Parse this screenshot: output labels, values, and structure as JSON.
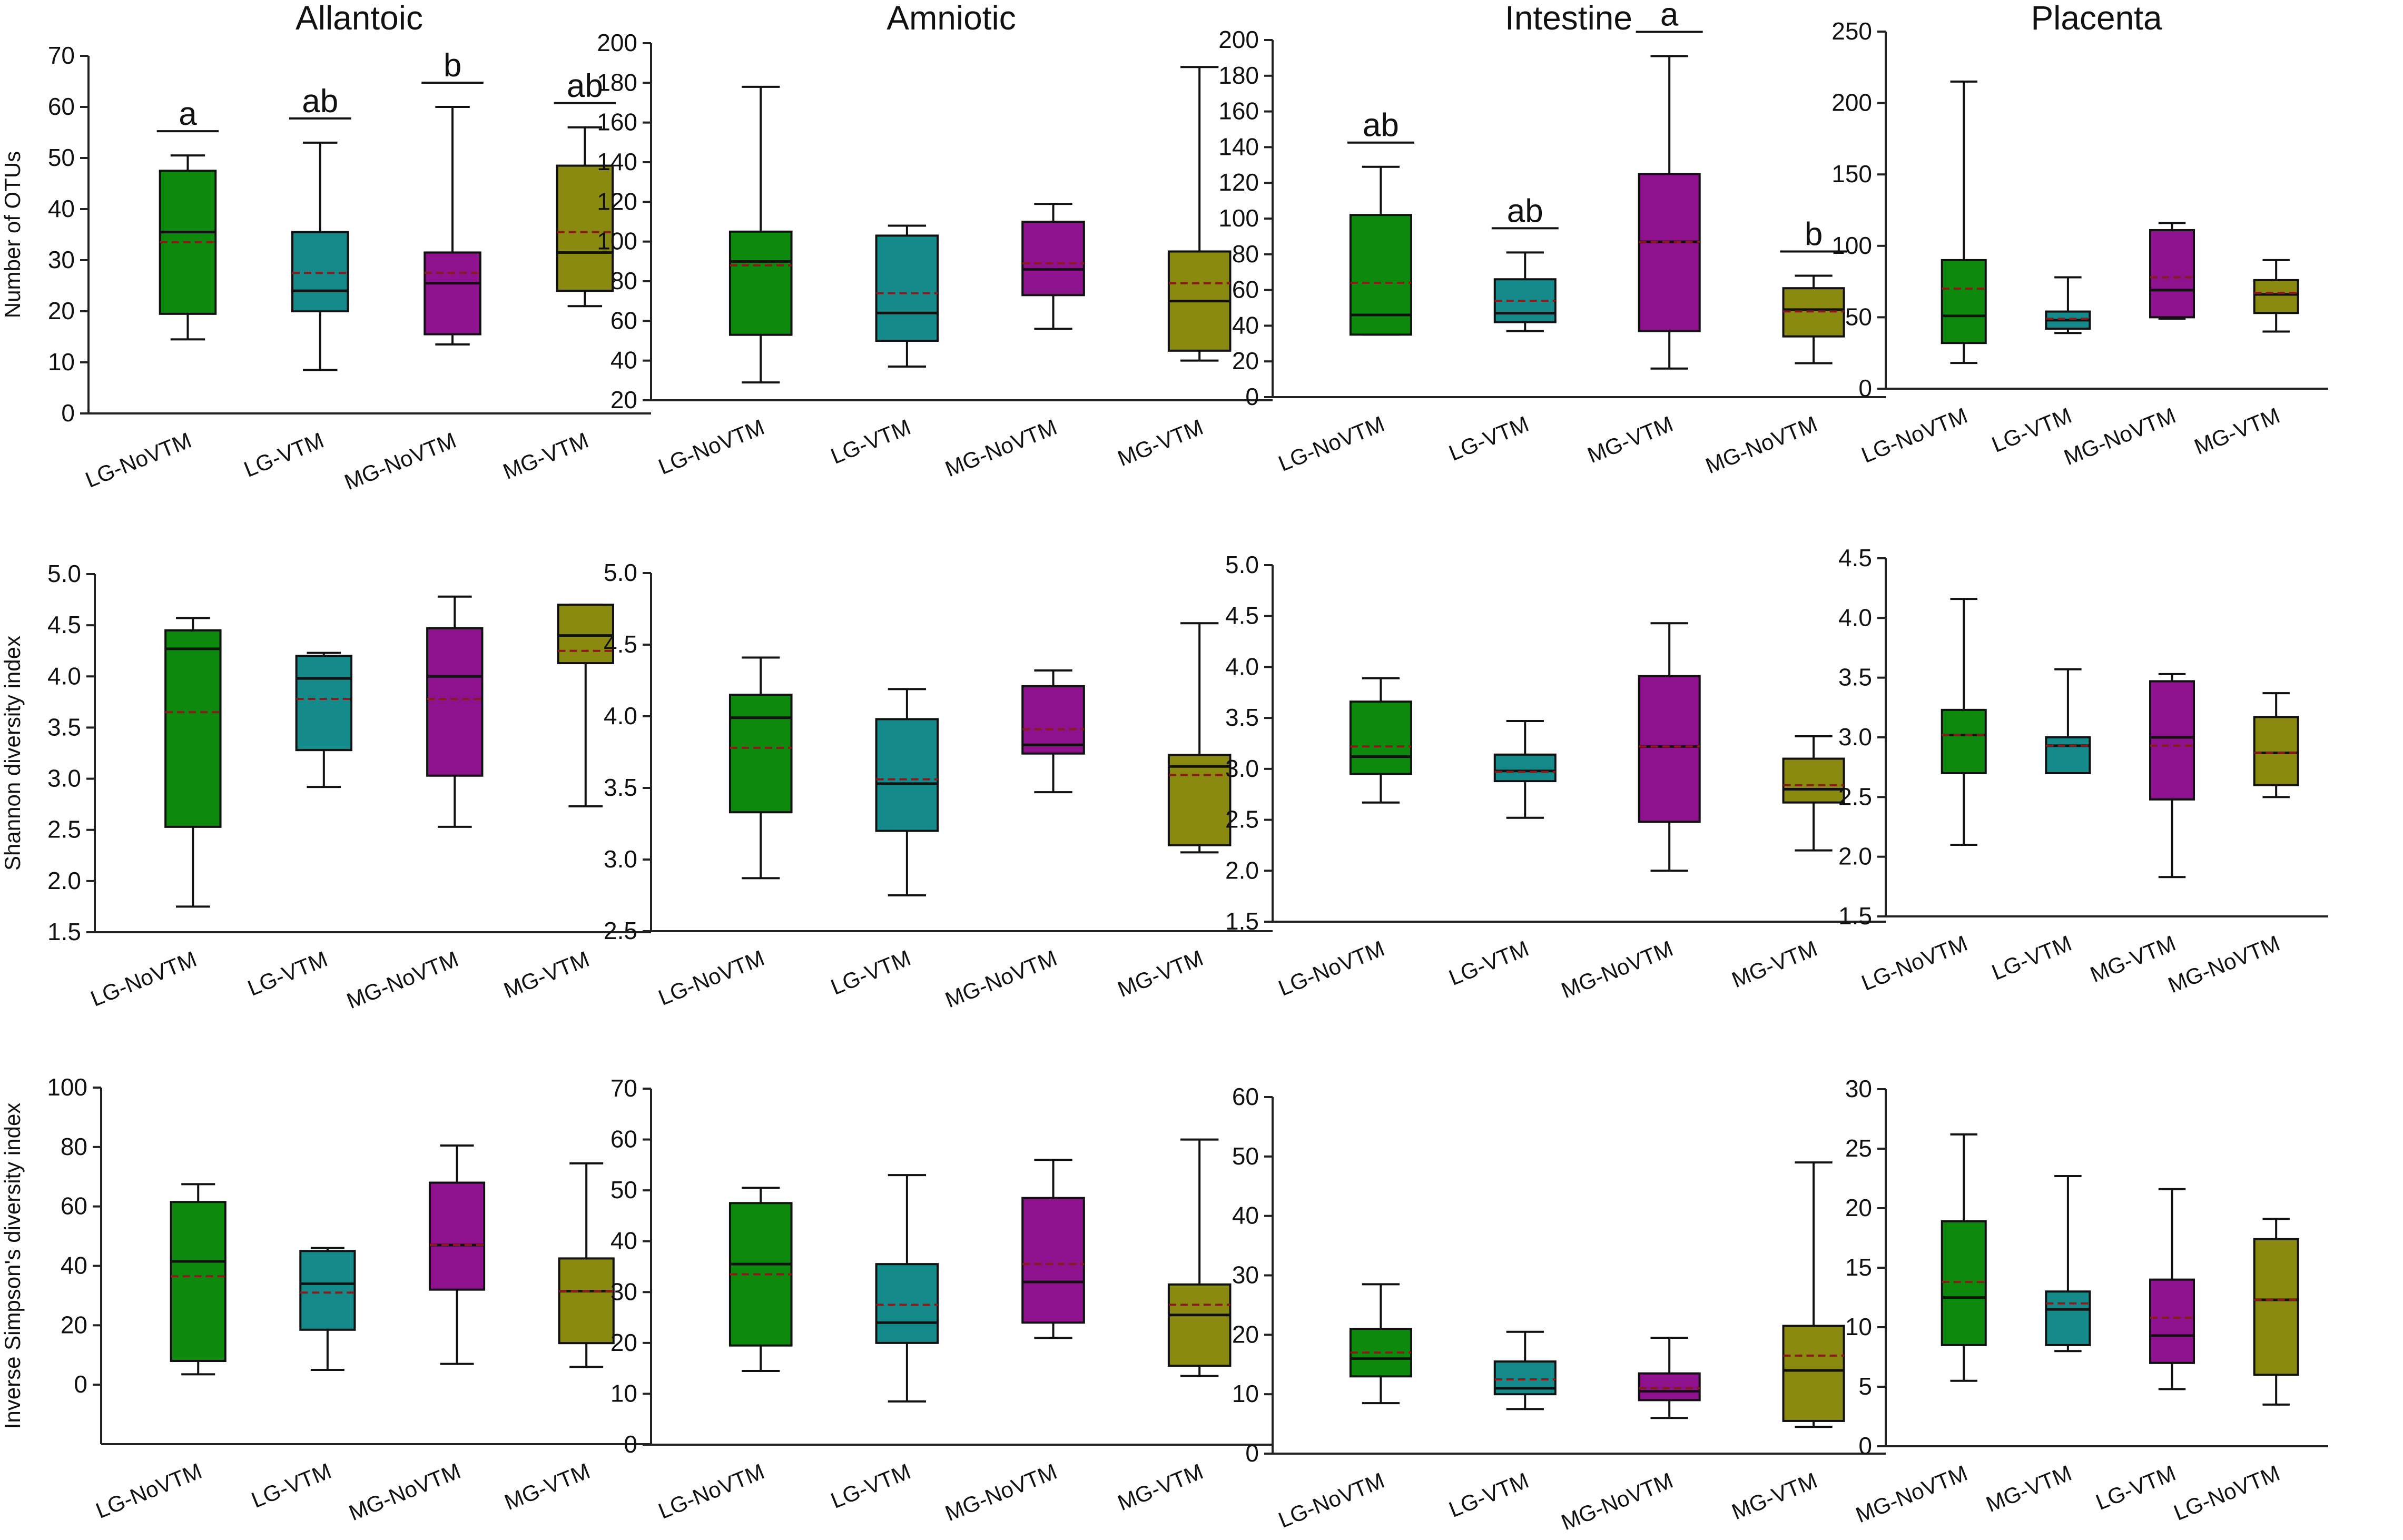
{
  "figure": {
    "background": "#ffffff"
  },
  "chart_data": [
    {
      "id": "otus-allantoic",
      "type": "box",
      "title": "Allantoic",
      "ylabel": "Number of OTUs",
      "ylim": [
        0,
        70
      ],
      "yticks": [
        0,
        10,
        20,
        30,
        40,
        50,
        60,
        70
      ],
      "categories": [
        "LG-NoVTM",
        "LG-VTM",
        "MG-NoVTM",
        "MG-VTM"
      ],
      "boxes": [
        {
          "min": 14.5,
          "q1": 19.5,
          "median": 35.5,
          "q3": 47.5,
          "max": 50.5,
          "mean": 33.5,
          "color": "#0d8a0d",
          "label": "a"
        },
        {
          "min": 8.5,
          "q1": 20,
          "median": 24,
          "q3": 35.5,
          "max": 53,
          "mean": 27.5,
          "color": "#158a8a",
          "label": "ab"
        },
        {
          "min": 13.5,
          "q1": 15.5,
          "median": 25.5,
          "q3": 31.5,
          "max": 60,
          "mean": 27.5,
          "color": "#8e118e",
          "label": "b"
        },
        {
          "min": 21,
          "q1": 24,
          "median": 31.5,
          "q3": 48.5,
          "max": 56,
          "mean": 35.5,
          "color": "#8a8a10",
          "label": "ab"
        }
      ]
    },
    {
      "id": "otus-amniotic",
      "type": "box",
      "title": "Amniotic",
      "ylabel": "",
      "ylim": [
        20,
        200
      ],
      "yticks": [
        20,
        40,
        60,
        80,
        100,
        120,
        140,
        160,
        180,
        200
      ],
      "categories": [
        "LG-NoVTM",
        "LG-VTM",
        "MG-NoVTM",
        "MG-VTM"
      ],
      "boxes": [
        {
          "min": 29,
          "q1": 53,
          "median": 90,
          "q3": 105,
          "max": 178,
          "mean": 88,
          "color": "#0d8a0d",
          "label": ""
        },
        {
          "min": 37,
          "q1": 50,
          "median": 64,
          "q3": 103,
          "max": 108,
          "mean": 74,
          "color": "#158a8a",
          "label": ""
        },
        {
          "min": 56,
          "q1": 73,
          "median": 86,
          "q3": 110,
          "max": 119,
          "mean": 89,
          "color": "#8e118e",
          "label": ""
        },
        {
          "min": 40,
          "q1": 45,
          "median": 70,
          "q3": 95,
          "max": 188,
          "mean": 79,
          "color": "#8a8a10",
          "label": ""
        }
      ]
    },
    {
      "id": "otus-intestine",
      "type": "box",
      "title": "Intestine",
      "ylabel": "",
      "ylim": [
        0,
        200
      ],
      "yticks": [
        0,
        20,
        40,
        60,
        80,
        100,
        120,
        140,
        160,
        180,
        200
      ],
      "categories": [
        "LG-NoVTM",
        "LG-VTM",
        "MG-VTM",
        "MG-NoVTM"
      ],
      "boxes": [
        {
          "min": 35,
          "q1": 35,
          "median": 46,
          "q3": 102,
          "max": 129,
          "mean": 64,
          "color": "#0d8a0d",
          "label": "ab"
        },
        {
          "min": 37,
          "q1": 42,
          "median": 47,
          "q3": 66,
          "max": 81,
          "mean": 54,
          "color": "#158a8a",
          "label": "ab"
        },
        {
          "min": 16,
          "q1": 37,
          "median": 87,
          "q3": 125,
          "max": 191,
          "mean": 87,
          "color": "#8e118e",
          "label": "a"
        },
        {
          "min": 19,
          "q1": 34,
          "median": 49,
          "q3": 61,
          "max": 68,
          "mean": 48,
          "color": "#8a8a10",
          "label": "b"
        }
      ]
    },
    {
      "id": "otus-placenta",
      "type": "box",
      "title": "Placenta",
      "ylabel": "",
      "ylim": [
        0,
        250
      ],
      "yticks": [
        0,
        50,
        100,
        150,
        200,
        250
      ],
      "categories": [
        "LG-NoVTM",
        "LG-VTM",
        "MG-NoVTM",
        "MG-VTM"
      ],
      "boxes": [
        {
          "min": 18,
          "q1": 32,
          "median": 51,
          "q3": 90,
          "max": 215,
          "mean": 70,
          "color": "#0d8a0d",
          "label": ""
        },
        {
          "min": 39,
          "q1": 42,
          "median": 48,
          "q3": 54,
          "max": 78,
          "mean": 49,
          "color": "#158a8a",
          "label": ""
        },
        {
          "min": 49,
          "q1": 50,
          "median": 69,
          "q3": 111,
          "max": 116,
          "mean": 78,
          "color": "#8e118e",
          "label": ""
        },
        {
          "min": 40,
          "q1": 53,
          "median": 66,
          "q3": 76,
          "max": 90,
          "mean": 67,
          "color": "#8a8a10",
          "label": ""
        }
      ]
    },
    {
      "id": "shannon-allantoic",
      "type": "box",
      "title": "",
      "ylabel": "Shannon diversity index",
      "ylim": [
        1.5,
        5.0
      ],
      "yticks": [
        1.5,
        2.0,
        2.5,
        3.0,
        3.5,
        4.0,
        4.5,
        5.0
      ],
      "categories": [
        "LG-NoVTM",
        "LG-VTM",
        "MG-NoVTM",
        "MG-VTM"
      ],
      "boxes": [
        {
          "min": 1.75,
          "q1": 2.53,
          "median": 4.27,
          "q3": 4.45,
          "max": 4.57,
          "mean": 3.65,
          "color": "#0d8a0d",
          "label": ""
        },
        {
          "min": 2.92,
          "q1": 3.28,
          "median": 3.98,
          "q3": 4.2,
          "max": 4.23,
          "mean": 3.78,
          "color": "#158a8a",
          "label": ""
        },
        {
          "min": 2.53,
          "q1": 3.03,
          "median": 4.0,
          "q3": 4.47,
          "max": 4.78,
          "mean": 3.78,
          "color": "#8e118e",
          "label": ""
        },
        {
          "min": 2.73,
          "q1": 4.13,
          "median": 4.4,
          "q3": 4.7,
          "max": 4.7,
          "mean": 4.25,
          "color": "#8a8a10",
          "label": ""
        }
      ]
    },
    {
      "id": "shannon-amniotic",
      "type": "box",
      "title": "",
      "ylabel": "",
      "ylim": [
        2.5,
        5.0
      ],
      "yticks": [
        2.5,
        3.0,
        3.5,
        4.0,
        4.5,
        5.0
      ],
      "categories": [
        "LG-NoVTM",
        "LG-VTM",
        "MG-NoVTM",
        "MG-VTM"
      ],
      "boxes": [
        {
          "min": 2.87,
          "q1": 3.33,
          "median": 3.99,
          "q3": 4.15,
          "max": 4.41,
          "mean": 3.78,
          "color": "#0d8a0d",
          "label": ""
        },
        {
          "min": 2.75,
          "q1": 3.2,
          "median": 3.53,
          "q3": 3.98,
          "max": 4.19,
          "mean": 3.56,
          "color": "#158a8a",
          "label": ""
        },
        {
          "min": 3.47,
          "q1": 3.74,
          "median": 3.8,
          "q3": 4.21,
          "max": 4.32,
          "mean": 3.91,
          "color": "#8e118e",
          "label": ""
        },
        {
          "min": 3.05,
          "q1": 3.1,
          "median": 3.65,
          "q3": 3.73,
          "max": 4.65,
          "mean": 3.59,
          "color": "#8a8a10",
          "label": ""
        }
      ]
    },
    {
      "id": "shannon-intestine",
      "type": "box",
      "title": "",
      "ylabel": "",
      "ylim": [
        1.5,
        5.0
      ],
      "yticks": [
        1.5,
        2.0,
        2.5,
        3.0,
        3.5,
        4.0,
        4.5,
        5.0
      ],
      "categories": [
        "LG-NoVTM",
        "LG-VTM",
        "MG-NoVTM",
        "MG-VTM"
      ],
      "boxes": [
        {
          "min": 2.67,
          "q1": 2.95,
          "median": 3.12,
          "q3": 3.66,
          "max": 3.89,
          "mean": 3.22,
          "color": "#0d8a0d",
          "label": ""
        },
        {
          "min": 2.52,
          "q1": 2.88,
          "median": 2.98,
          "q3": 3.14,
          "max": 3.47,
          "mean": 2.97,
          "color": "#158a8a",
          "label": ""
        },
        {
          "min": 2.0,
          "q1": 2.48,
          "median": 3.22,
          "q3": 3.91,
          "max": 4.43,
          "mean": 3.22,
          "color": "#8e118e",
          "label": ""
        },
        {
          "min": 2.2,
          "q1": 2.67,
          "median": 2.8,
          "q3": 3.1,
          "max": 3.32,
          "mean": 2.84,
          "color": "#8a8a10",
          "label": ""
        }
      ]
    },
    {
      "id": "shannon-placenta",
      "type": "box",
      "title": "",
      "ylabel": "",
      "ylim": [
        1.5,
        4.5
      ],
      "yticks": [
        1.5,
        2.0,
        2.5,
        3.0,
        3.5,
        4.0,
        4.5
      ],
      "categories": [
        "LG-NoVTM",
        "LG-VTM",
        "MG-VTM",
        "MG-NoVTM"
      ],
      "boxes": [
        {
          "min": 2.1,
          "q1": 2.7,
          "median": 3.02,
          "q3": 3.23,
          "max": 4.16,
          "mean": 3.02,
          "color": "#0d8a0d",
          "label": ""
        },
        {
          "min": 2.7,
          "q1": 2.7,
          "median": 2.93,
          "q3": 3.0,
          "max": 3.57,
          "mean": 2.93,
          "color": "#158a8a",
          "label": ""
        },
        {
          "min": 1.83,
          "q1": 2.48,
          "median": 3.0,
          "q3": 3.47,
          "max": 3.53,
          "mean": 2.93,
          "color": "#8e118e",
          "label": ""
        },
        {
          "min": 2.5,
          "q1": 2.6,
          "median": 2.87,
          "q3": 3.17,
          "max": 3.37,
          "mean": 2.87,
          "color": "#8a8a10",
          "label": ""
        }
      ]
    },
    {
      "id": "simpson-allantoic",
      "type": "box",
      "title": "",
      "ylabel": "Inverse Simpson's diversity index",
      "ylim": [
        -20,
        100
      ],
      "yticks": [
        0,
        20,
        40,
        60,
        80,
        100
      ],
      "categories": [
        "LG-NoVTM",
        "LG-VTM",
        "MG-NoVTM",
        "MG-VTM"
      ],
      "boxes": [
        {
          "min": 3.5,
          "q1": 8,
          "median": 41.5,
          "q3": 61.5,
          "max": 67.5,
          "mean": 36.5,
          "color": "#0d8a0d",
          "label": ""
        },
        {
          "min": 5,
          "q1": 18.5,
          "median": 34,
          "q3": 45,
          "max": 46,
          "mean": 31,
          "color": "#158a8a",
          "label": ""
        },
        {
          "min": 7,
          "q1": 32,
          "median": 47,
          "q3": 68,
          "max": 80.5,
          "mean": 47,
          "color": "#8e118e",
          "label": ""
        },
        {
          "min": 6,
          "q1": 14,
          "median": 31.5,
          "q3": 42.5,
          "max": 74.5,
          "mean": 31.5,
          "color": "#8a8a10",
          "label": ""
        }
      ]
    },
    {
      "id": "simpson-amniotic",
      "type": "box",
      "title": "",
      "ylabel": "",
      "ylim": [
        0,
        70
      ],
      "yticks": [
        0,
        10,
        20,
        30,
        40,
        50,
        60,
        70
      ],
      "categories": [
        "LG-NoVTM",
        "LG-VTM",
        "MG-NoVTM",
        "MG-VTM"
      ],
      "boxes": [
        {
          "min": 14.5,
          "q1": 19.5,
          "median": 35.5,
          "q3": 47.5,
          "max": 50.5,
          "mean": 33.5,
          "color": "#0d8a0d",
          "label": ""
        },
        {
          "min": 8.5,
          "q1": 20,
          "median": 24,
          "q3": 35.5,
          "max": 53,
          "mean": 27.5,
          "color": "#158a8a",
          "label": ""
        },
        {
          "min": 21,
          "q1": 24,
          "median": 32,
          "q3": 48.5,
          "max": 56,
          "mean": 35.5,
          "color": "#8e118e",
          "label": ""
        },
        {
          "min": 13.5,
          "q1": 15.5,
          "median": 25.5,
          "q3": 31.5,
          "max": 60,
          "mean": 27.5,
          "color": "#8a8a10",
          "label": ""
        }
      ]
    },
    {
      "id": "simpson-intestine",
      "type": "box",
      "title": "",
      "ylabel": "",
      "ylim": [
        0,
        60
      ],
      "yticks": [
        0,
        10,
        20,
        30,
        40,
        50,
        60
      ],
      "categories": [
        "LG-NoVTM",
        "LG-VTM",
        "MG-NoVTM",
        "MG-VTM"
      ],
      "boxes": [
        {
          "min": 8.5,
          "q1": 13,
          "median": 16,
          "q3": 21,
          "max": 28.5,
          "mean": 17,
          "color": "#0d8a0d",
          "label": ""
        },
        {
          "min": 7.5,
          "q1": 10,
          "median": 11,
          "q3": 15.5,
          "max": 20.5,
          "mean": 12.5,
          "color": "#158a8a",
          "label": ""
        },
        {
          "min": 6,
          "q1": 9,
          "median": 10.5,
          "q3": 13.5,
          "max": 19.5,
          "mean": 11,
          "color": "#8e118e",
          "label": ""
        },
        {
          "min": 4.5,
          "q1": 5.5,
          "median": 14,
          "q3": 21.5,
          "max": 49,
          "mean": 16.5,
          "color": "#8a8a10",
          "label": ""
        }
      ]
    },
    {
      "id": "simpson-placenta",
      "type": "box",
      "title": "",
      "ylabel": "",
      "ylim": [
        0,
        30
      ],
      "yticks": [
        0,
        5,
        10,
        15,
        20,
        25,
        30
      ],
      "categories": [
        "MG-NoVTM",
        "MG-VTM",
        "LG-VTM",
        "LG-NoVTM"
      ],
      "boxes": [
        {
          "min": 5.5,
          "q1": 8.5,
          "median": 12.5,
          "q3": 18.9,
          "max": 26.2,
          "mean": 13.8,
          "color": "#0d8a0d",
          "label": ""
        },
        {
          "min": 8,
          "q1": 8.5,
          "median": 11.5,
          "q3": 13,
          "max": 22.7,
          "mean": 12,
          "color": "#158a8a",
          "label": ""
        },
        {
          "min": 4.8,
          "q1": 7,
          "median": 9.3,
          "q3": 14,
          "max": 21.6,
          "mean": 10.8,
          "color": "#8e118e",
          "label": ""
        },
        {
          "min": 3.5,
          "q1": 6,
          "median": 12.3,
          "q3": 17.4,
          "max": 19.1,
          "mean": 12.3,
          "color": "#8a8a10",
          "label": ""
        }
      ]
    }
  ]
}
